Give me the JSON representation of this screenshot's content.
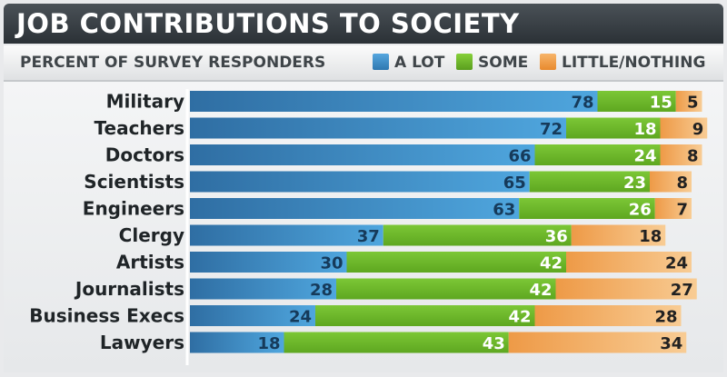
{
  "title": "JOB CONTRIBUTIONS TO SOCIETY",
  "subtitle": "PERCENT OF SURVEY RESPONDERS",
  "legend": [
    {
      "label": "A LOT",
      "color": "#3a8ac4"
    },
    {
      "label": "SOME",
      "color": "#6fb82a"
    },
    {
      "label": "LITTLE/NOTHING",
      "color": "#f0a55a"
    }
  ],
  "chart_data": {
    "type": "bar",
    "orientation": "horizontal",
    "stacked": true,
    "title": "JOB CONTRIBUTIONS TO SOCIETY",
    "subtitle": "PERCENT OF SURVEY RESPONDERS",
    "categories": [
      "Military",
      "Teachers",
      "Doctors",
      "Scientists",
      "Engineers",
      "Clergy",
      "Artists",
      "Journalists",
      "Business Execs",
      "Lawyers"
    ],
    "series": [
      {
        "name": "A LOT",
        "color": "#3a8ac4",
        "values": [
          78,
          72,
          66,
          65,
          63,
          37,
          30,
          28,
          24,
          18
        ]
      },
      {
        "name": "SOME",
        "color": "#6fb82a",
        "values": [
          15,
          18,
          24,
          23,
          26,
          36,
          42,
          42,
          42,
          43
        ]
      },
      {
        "name": "LITTLE/NOTHING",
        "color": "#f0a55a",
        "values": [
          5,
          9,
          8,
          8,
          7,
          18,
          24,
          27,
          28,
          34
        ]
      }
    ],
    "legend_position": "top",
    "grid": false
  }
}
